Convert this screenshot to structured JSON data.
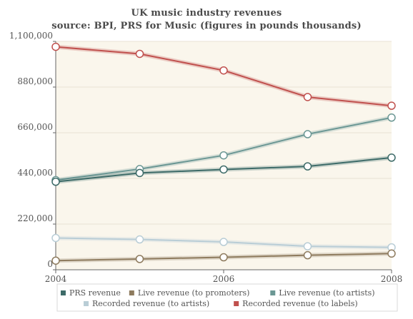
{
  "chart_data": {
    "type": "line",
    "title": "UK music industry revenues",
    "subtitle": "source: BPI, PRS for Music (figures in pounds thousands)",
    "x": [
      2004,
      2005,
      2006,
      2007,
      2008
    ],
    "x_ticks": [
      "2004",
      "2006",
      "2008"
    ],
    "y_ticks": [
      "0",
      "220,000",
      "440,000",
      "660,000",
      "880,000",
      "1,100,000"
    ],
    "ylim": [
      0,
      1100000
    ],
    "xlim": [
      2004,
      2008
    ],
    "grid": "horizontal",
    "legend_position": "bottom",
    "series": [
      {
        "name": "PRS revenue",
        "color": "#3d6b68",
        "values": [
          424000,
          466000,
          483000,
          498000,
          540000
        ]
      },
      {
        "name": "Live revenue (to promoters)",
        "color": "#8e7b5e",
        "values": [
          44000,
          52000,
          60000,
          70000,
          78000
        ]
      },
      {
        "name": "Live revenue (to artists)",
        "color": "#6b9794",
        "values": [
          432000,
          485000,
          551000,
          653000,
          733000
        ]
      },
      {
        "name": "Recorded revenue (to artists)",
        "color": "#b9cdd6",
        "values": [
          153000,
          146000,
          134000,
          113000,
          108000
        ]
      },
      {
        "name": "Recorded revenue (to labels)",
        "color": "#c0504d",
        "values": [
          1074000,
          1040000,
          960000,
          832000,
          790000
        ]
      }
    ]
  }
}
